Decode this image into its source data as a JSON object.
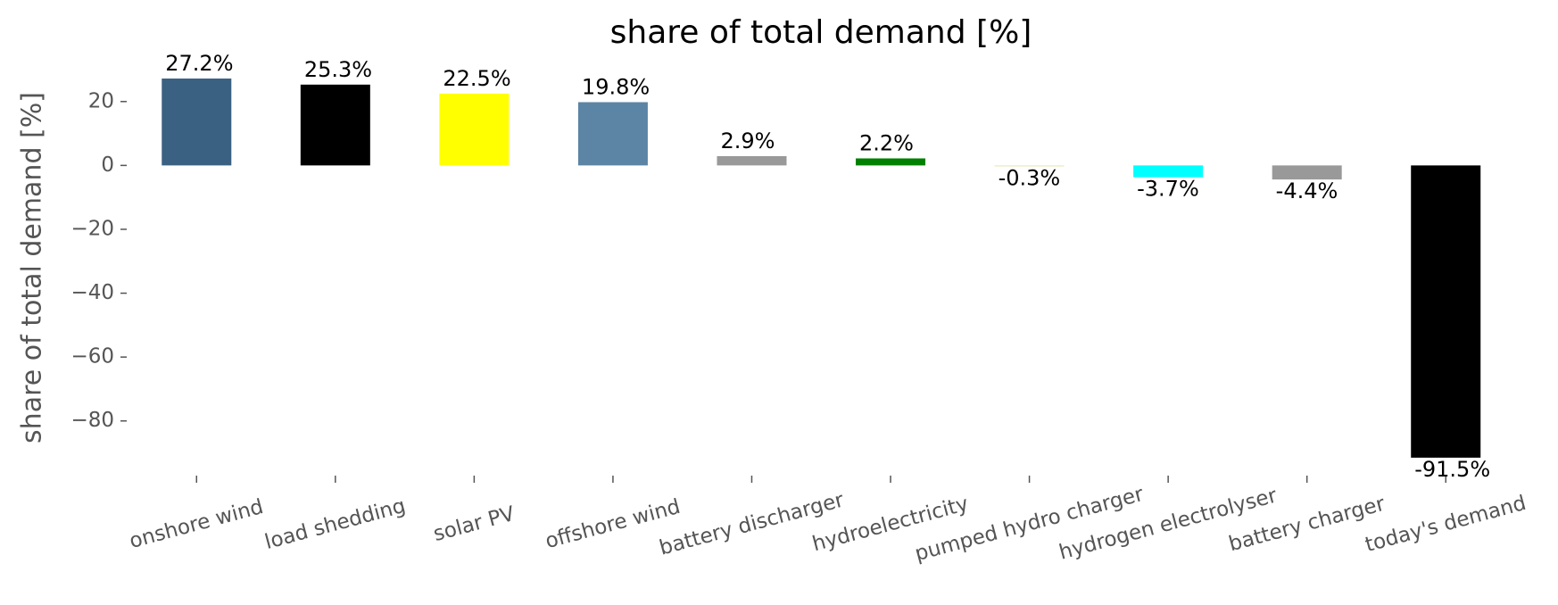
{
  "chart_data": {
    "type": "bar",
    "title": "share of total demand [%]",
    "ylabel": "share of total demand [%]",
    "categories": [
      "onshore wind",
      "load shedding",
      "solar PV",
      "offshore wind",
      "battery discharger",
      "hydroelectricity",
      "pumped hydro charger",
      "hydrogen electrolyser",
      "battery charger",
      "today's demand"
    ],
    "values": [
      27.2,
      25.3,
      22.5,
      19.8,
      2.9,
      2.2,
      -0.3,
      -3.7,
      -4.4,
      -91.5
    ],
    "value_labels": [
      "27.2%",
      "25.3%",
      "22.5%",
      "19.8%",
      "2.9%",
      "2.2%",
      "-0.3%",
      "-3.7%",
      "-4.4%",
      "-91.5%"
    ],
    "colors": [
      "#3b6182",
      "#000000",
      "#ffff00",
      "#5c84a4",
      "#999999",
      "#008000",
      "#e8e7b0",
      "#00ffff",
      "#999999",
      "#000000"
    ],
    "ylim": [
      -96,
      30
    ],
    "yticks": [
      {
        "value": 20,
        "label": "20"
      },
      {
        "value": 0,
        "label": "0"
      },
      {
        "value": -20,
        "label": "−20"
      },
      {
        "value": -40,
        "label": "−40"
      },
      {
        "value": -60,
        "label": "−60"
      },
      {
        "value": -80,
        "label": "−80"
      }
    ]
  }
}
